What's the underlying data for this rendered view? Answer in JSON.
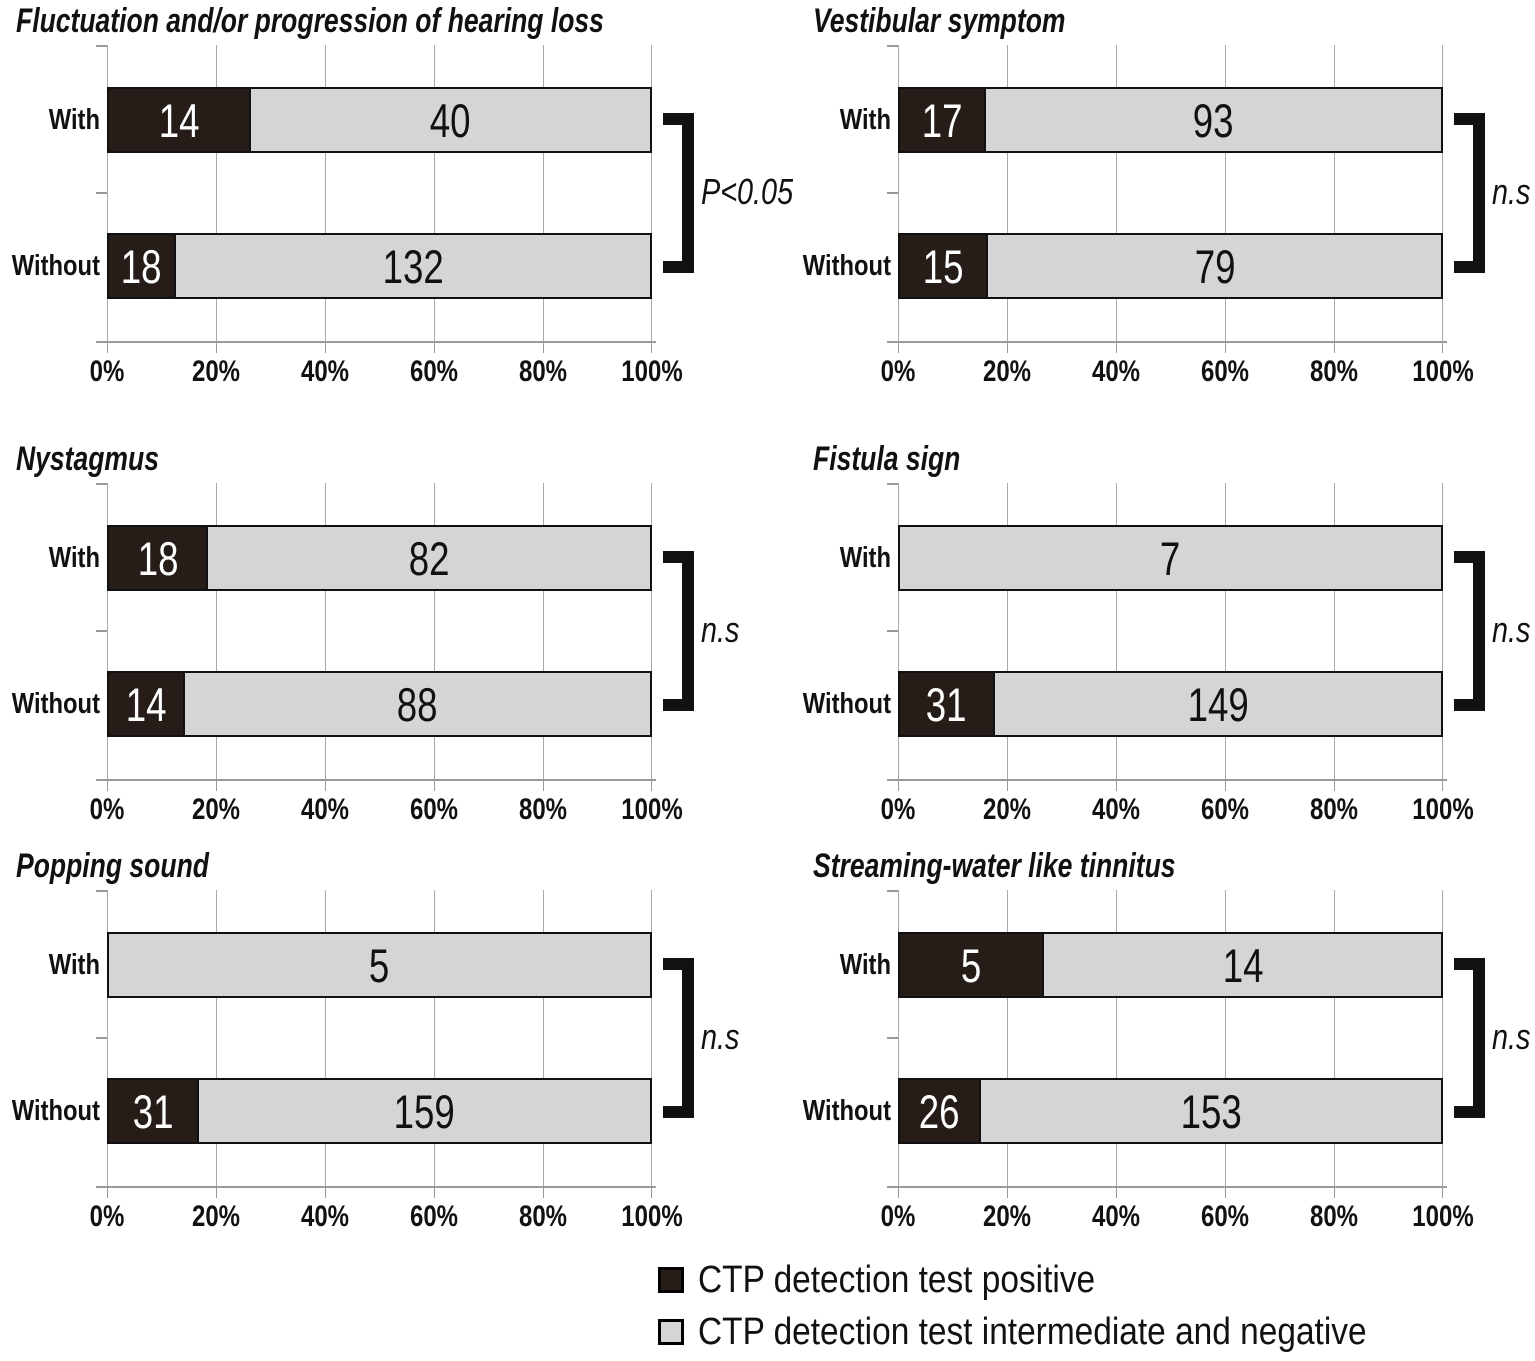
{
  "chart_data": {
    "type": "bar",
    "variant": "horizontal_stacked_100_percent",
    "x_axis": {
      "ticks": [
        "0%",
        "20%",
        "40%",
        "60%",
        "80%",
        "100%"
      ],
      "range": [
        0,
        100
      ],
      "grid": true
    },
    "legend": [
      {
        "name": "CTP detection test positive",
        "color": "#261d18"
      },
      {
        "name": "CTP detection test intermediate and negative",
        "color": "#d5d5d5"
      }
    ],
    "panels": [
      {
        "title": "Fluctuation and/or progression of hearing loss",
        "categories": [
          "With",
          "Without"
        ],
        "series": [
          {
            "name": "CTP detection test positive",
            "values": [
              14,
              18
            ]
          },
          {
            "name": "CTP detection test intermediate and negative",
            "values": [
              40,
              132
            ]
          }
        ],
        "significance": "P<0.05"
      },
      {
        "title": "Vestibular symptom",
        "categories": [
          "With",
          "Without"
        ],
        "series": [
          {
            "name": "CTP detection test positive",
            "values": [
              17,
              15
            ]
          },
          {
            "name": "CTP detection test intermediate and negative",
            "values": [
              93,
              79
            ]
          }
        ],
        "significance": "n.s"
      },
      {
        "title": "Nystagmus",
        "categories": [
          "With",
          "Without"
        ],
        "series": [
          {
            "name": "CTP detection test positive",
            "values": [
              18,
              14
            ]
          },
          {
            "name": "CTP detection test intermediate and negative",
            "values": [
              82,
              88
            ]
          }
        ],
        "significance": "n.s"
      },
      {
        "title": "Fistula sign",
        "categories": [
          "With",
          "Without"
        ],
        "series": [
          {
            "name": "CTP detection test positive",
            "values": [
              0,
              31
            ]
          },
          {
            "name": "CTP detection test intermediate and negative",
            "values": [
              7,
              149
            ]
          }
        ],
        "significance": "n.s"
      },
      {
        "title": "Popping sound",
        "categories": [
          "With",
          "Without"
        ],
        "series": [
          {
            "name": "CTP detection test positive",
            "values": [
              0,
              31
            ]
          },
          {
            "name": "CTP detection test intermediate and negative",
            "values": [
              5,
              159
            ]
          }
        ],
        "significance": "n.s"
      },
      {
        "title": "Streaming-water like tinnitus",
        "categories": [
          "With",
          "Without"
        ],
        "series": [
          {
            "name": "CTP detection test positive",
            "values": [
              5,
              26
            ]
          },
          {
            "name": "CTP detection test intermediate and negative",
            "values": [
              14,
              153
            ]
          }
        ],
        "significance": "n.s"
      }
    ]
  }
}
